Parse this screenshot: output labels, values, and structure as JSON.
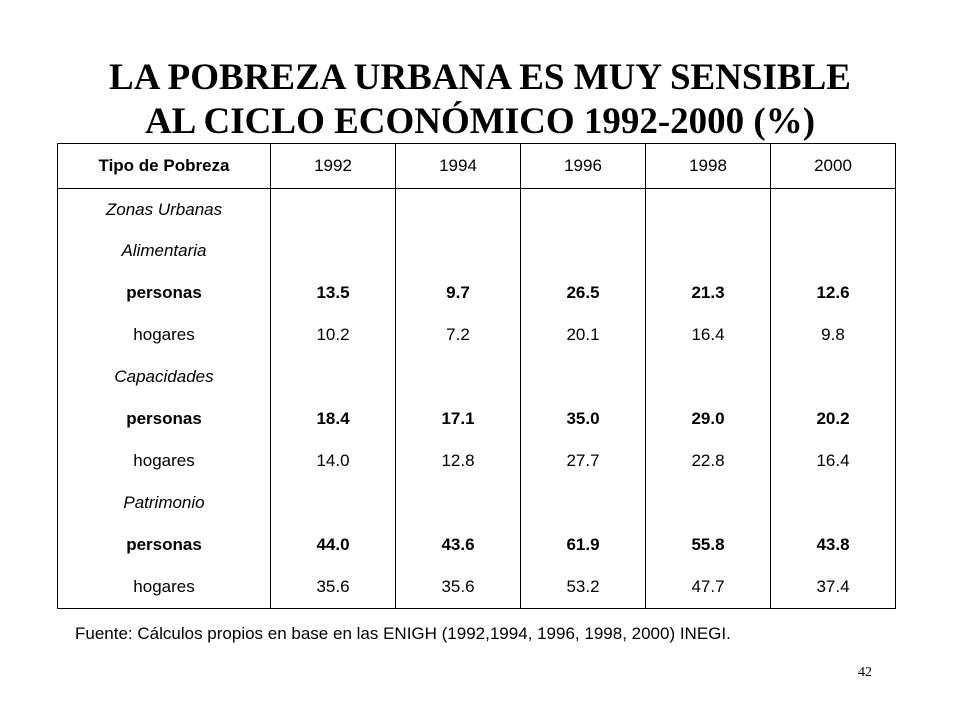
{
  "title": {
    "line1": "LA POBREZA URBANA ES MUY SENSIBLE",
    "line2": "AL CICLO ECONÓMICO 1992-2000 (%)"
  },
  "table": {
    "header": [
      "Tipo de Pobreza",
      "1992",
      "1994",
      "1996",
      "1998",
      "2000"
    ],
    "rows": [
      {
        "label": "Zonas Urbanas",
        "values": [
          "",
          "",
          "",
          "",
          ""
        ]
      },
      {
        "label": "Alimentaria",
        "values": [
          "",
          "",
          "",
          "",
          ""
        ]
      },
      {
        "label": "personas",
        "values": [
          "13.5",
          "9.7",
          "26.5",
          "21.3",
          "12.6"
        ]
      },
      {
        "label": "hogares",
        "values": [
          "10.2",
          "7.2",
          "20.1",
          "16.4",
          "9.8"
        ]
      },
      {
        "label": "Capacidades",
        "values": [
          "",
          "",
          "",
          "",
          ""
        ]
      },
      {
        "label": "personas",
        "values": [
          "18.4",
          "17.1",
          "35.0",
          "29.0",
          "20.2"
        ]
      },
      {
        "label": "hogares",
        "values": [
          "14.0",
          "12.8",
          "27.7",
          "22.8",
          "16.4"
        ]
      },
      {
        "label": "Patrimonio",
        "values": [
          "",
          "",
          "",
          "",
          ""
        ]
      },
      {
        "label": "personas",
        "values": [
          "44.0",
          "43.6",
          "61.9",
          "55.8",
          "43.8"
        ]
      },
      {
        "label": "hogares",
        "values": [
          "35.6",
          "35.6",
          "53.2",
          "47.7",
          "37.4"
        ]
      }
    ]
  },
  "source": "Fuente: Cálculos propios en base en las ENIGH (1992,1994, 1996, 1998, 2000) INEGI.",
  "page_number": "42"
}
